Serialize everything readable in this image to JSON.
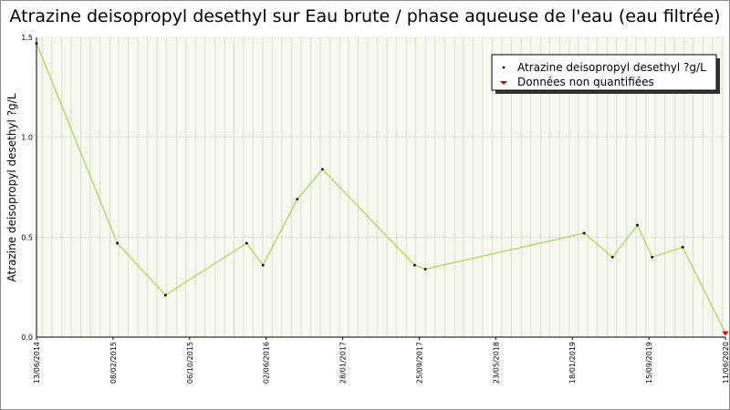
{
  "title": "Atrazine deisopropyl desethyl sur Eau brute / phase aqueuse de l'eau (eau filtrée)",
  "colors": {
    "plot_background": "#f7f9ee",
    "series_line": "#99cc33",
    "marker": "#000000",
    "unquantified_marker": "#cc0000",
    "grid": "#c8c8c8"
  },
  "chart_data": {
    "type": "line",
    "title": "Atrazine deisopropyl desethyl sur Eau brute / phase aqueuse de l'eau (eau filtrée)",
    "xlabel": "",
    "ylabel": "Atrazine deisopropyl desethyl ?g/L",
    "ylim": [
      0,
      1.5
    ],
    "yticks": [
      "0.0",
      "0.5",
      "1.0",
      "1.5"
    ],
    "xlim": [
      "2014-06-13",
      "2020-06-11"
    ],
    "xtick_labels": [
      "13/06/2014",
      "08/02/2015",
      "06/10/2015",
      "02/06/2016",
      "28/01/2017",
      "25/09/2017",
      "23/05/2018",
      "18/01/2019",
      "15/09/2019",
      "11/06/2020"
    ],
    "grid": true,
    "legend_position": "top-right",
    "legend": [
      "Atrazine deisopropyl desethyl ?g/L",
      "Données non quantifiées"
    ],
    "series": [
      {
        "name": "Atrazine deisopropyl desethyl ?g/L",
        "points": [
          {
            "x": "2014-06-13",
            "y": 1.47
          },
          {
            "x": "2015-02-25",
            "y": 0.47
          },
          {
            "x": "2015-07-28",
            "y": 0.21
          },
          {
            "x": "2016-04-11",
            "y": 0.47
          },
          {
            "x": "2016-06-02",
            "y": 0.36
          },
          {
            "x": "2016-09-19",
            "y": 0.69
          },
          {
            "x": "2016-12-08",
            "y": 0.84
          },
          {
            "x": "2017-09-27",
            "y": 0.36
          },
          {
            "x": "2017-10-31",
            "y": 0.34
          },
          {
            "x": "2019-03-20",
            "y": 0.52
          },
          {
            "x": "2019-06-18",
            "y": 0.4
          },
          {
            "x": "2019-09-05",
            "y": 0.56
          },
          {
            "x": "2019-10-22",
            "y": 0.4
          },
          {
            "x": "2020-01-27",
            "y": 0.45
          },
          {
            "x": "2020-06-11",
            "y": 0.02
          }
        ]
      }
    ],
    "unquantified_points": [
      {
        "x": "2020-06-11",
        "y": 0.02
      }
    ]
  }
}
